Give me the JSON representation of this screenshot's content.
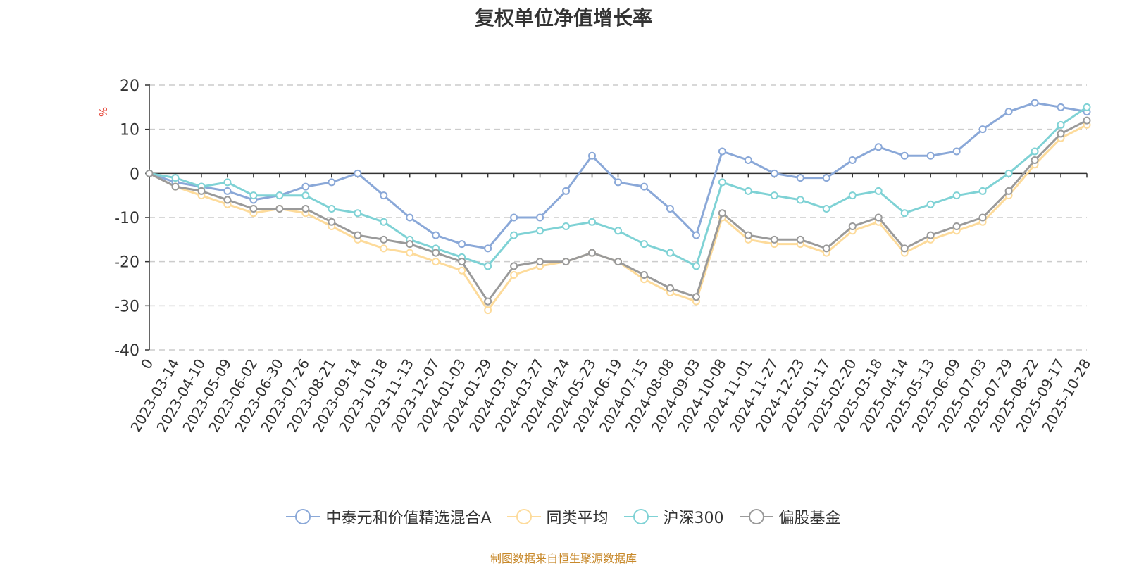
{
  "chart_data": {
    "type": "line",
    "title": "复权单位净值增长率",
    "ylabel": "%",
    "ylim": [
      -40,
      20
    ],
    "y_ticks": [
      -40,
      -30,
      -20,
      -10,
      0,
      10,
      20
    ],
    "grid": true,
    "legend_position": "bottom",
    "x_tick_labels": [
      "0",
      "2023-03-14",
      "2023-04-10",
      "2023-05-09",
      "2023-06-02",
      "2023-06-30",
      "2023-07-26",
      "2023-08-21",
      "2023-09-14",
      "2023-10-18",
      "2023-11-13",
      "2023-12-07",
      "2024-01-03",
      "2024-01-29",
      "2024-03-01",
      "2024-03-27",
      "2024-04-24",
      "2024-05-23",
      "2024-06-19",
      "2024-07-15",
      "2024-08-08",
      "2024-09-03",
      "2024-10-08",
      "2024-11-01",
      "2024-11-27",
      "2024-12-23",
      "2025-01-17",
      "2025-02-20",
      "2025-03-18",
      "2025-04-14",
      "2025-05-13",
      "2025-06-09",
      "2025-07-03",
      "2025-07-29",
      "2025-08-22",
      "2025-09-17",
      "2025-10-28"
    ],
    "series": [
      {
        "name": "中泰元和价值精选混合A",
        "color": "#8aa8d8",
        "values": [
          0,
          -2,
          -3,
          -4,
          -6,
          -5,
          -3,
          -2,
          0,
          -5,
          -10,
          -14,
          -16,
          -17,
          -10,
          -10,
          -4,
          4,
          -2,
          -3,
          -8,
          -14,
          5,
          3,
          0,
          -1,
          -1,
          3,
          6,
          4,
          4,
          5,
          10,
          14,
          16,
          15,
          14
        ]
      },
      {
        "name": "同类平均",
        "color": "#fddb9b",
        "values": [
          0,
          -3,
          -5,
          -7,
          -9,
          -8,
          -9,
          -12,
          -15,
          -17,
          -18,
          -20,
          -22,
          -31,
          -23,
          -21,
          -20,
          -18,
          -20,
          -24,
          -27,
          -29,
          -10,
          -15,
          -16,
          -16,
          -18,
          -13,
          -11,
          -18,
          -15,
          -13,
          -11,
          -5,
          2,
          8,
          11
        ]
      },
      {
        "name": "沪深300",
        "color": "#7fd2d5",
        "values": [
          0,
          -1,
          -3,
          -2,
          -5,
          -5,
          -5,
          -8,
          -9,
          -11,
          -15,
          -17,
          -19,
          -21,
          -14,
          -13,
          -12,
          -11,
          -13,
          -16,
          -18,
          -21,
          -2,
          -4,
          -5,
          -6,
          -8,
          -5,
          -4,
          -9,
          -7,
          -5,
          -4,
          0,
          5,
          11,
          15
        ]
      },
      {
        "name": "偏股基金",
        "color": "#9a9a9a",
        "values": [
          0,
          -3,
          -4,
          -6,
          -8,
          -8,
          -8,
          -11,
          -14,
          -15,
          -16,
          -18,
          -20,
          -29,
          -21,
          -20,
          -20,
          -18,
          -20,
          -23,
          -26,
          -28,
          -9,
          -14,
          -15,
          -15,
          -17,
          -12,
          -10,
          -17,
          -14,
          -12,
          -10,
          -4,
          3,
          9,
          12
        ]
      }
    ]
  },
  "footer": {
    "source": "制图数据来自恒生聚源数据库"
  }
}
